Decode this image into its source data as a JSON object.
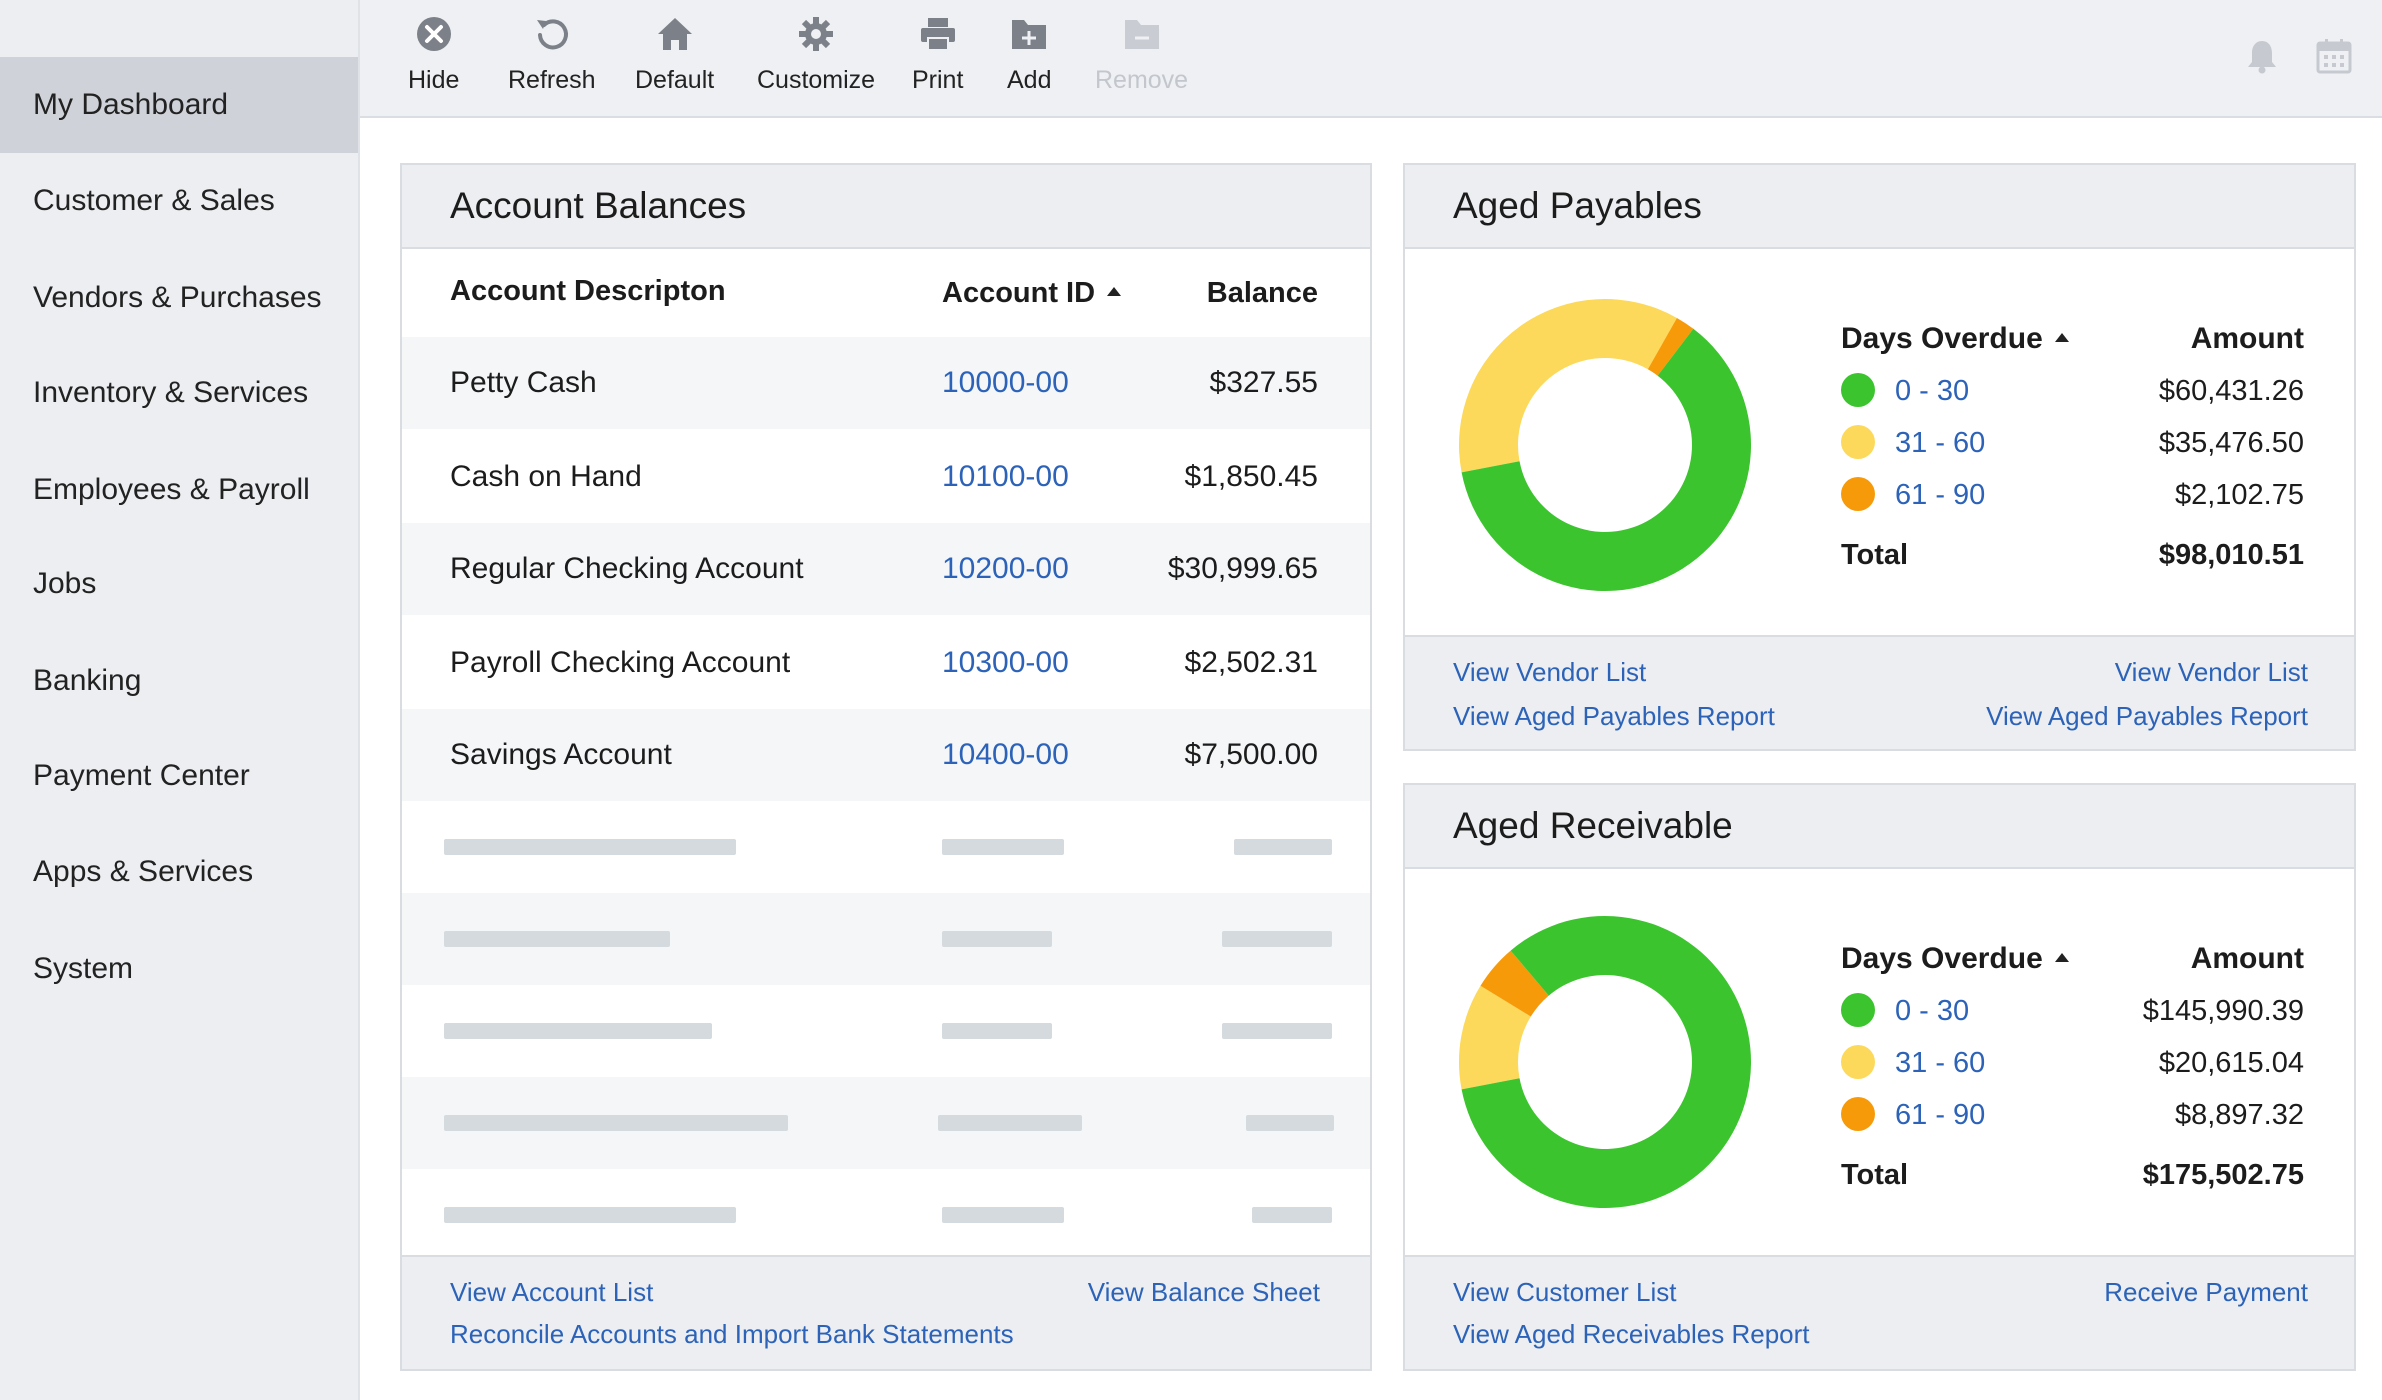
{
  "sidebar": {
    "items": [
      {
        "label": "My Dashboard",
        "active": true
      },
      {
        "label": "Customer & Sales"
      },
      {
        "label": "Vendors & Purchases"
      },
      {
        "label": "Inventory & Services"
      },
      {
        "label": "Employees & Payroll"
      },
      {
        "label": "Jobs"
      },
      {
        "label": "Banking"
      },
      {
        "label": "Payment Center"
      },
      {
        "label": "Apps & Services"
      },
      {
        "label": "System"
      }
    ]
  },
  "toolbar": {
    "buttons": [
      {
        "label": "Hide",
        "icon": "close-circle-icon"
      },
      {
        "label": "Refresh",
        "icon": "refresh-icon"
      },
      {
        "label": "Default",
        "icon": "home-icon"
      },
      {
        "label": "Customize",
        "icon": "gear-icon"
      },
      {
        "label": "Print",
        "icon": "printer-icon"
      },
      {
        "label": "Add",
        "icon": "folder-add-icon"
      },
      {
        "label": "Remove",
        "icon": "folder-remove-icon",
        "disabled": true
      }
    ],
    "right_icons": [
      "bell-icon",
      "calendar-icon"
    ]
  },
  "account_balances": {
    "title": "Account Balances",
    "columns": {
      "description": "Account Descripton",
      "id": "Account ID",
      "balance": "Balance"
    },
    "rows": [
      {
        "description": "Petty Cash",
        "id": "10000-00",
        "balance": "$327.55"
      },
      {
        "description": "Cash on Hand",
        "id": "10100-00",
        "balance": "$1,850.45"
      },
      {
        "description": "Regular Checking Account",
        "id": "10200-00",
        "balance": "$30,999.65"
      },
      {
        "description": "Payroll Checking Account",
        "id": "10300-00",
        "balance": "$2,502.31"
      },
      {
        "description": "Savings Account",
        "id": "10400-00",
        "balance": "$7,500.00"
      }
    ],
    "links": {
      "view_account_list": "View Account List",
      "reconcile": "Reconcile Accounts and Import Bank Statements",
      "view_balance_sheet": "View Balance Sheet"
    }
  },
  "aged_payables": {
    "title": "Aged Payables",
    "days_header": "Days Overdue",
    "amount_header": "Amount",
    "ranges": [
      {
        "label": "0 - 30",
        "amount": "$60,431.26",
        "value": 60431.26,
        "color": "#3cc42f"
      },
      {
        "label": "31 - 60",
        "amount": "$35,476.50",
        "value": 35476.5,
        "color": "#fcd95a"
      },
      {
        "label": "61 - 90",
        "amount": "$2,102.75",
        "value": 2102.75,
        "color": "#f79a09"
      }
    ],
    "total_label": "Total",
    "total": "$98,010.51",
    "links": {
      "view_vendor_list_left": "View Vendor List",
      "view_aged_payables_left": "View Aged Payables Report",
      "view_vendor_list_right": "View Vendor List",
      "view_aged_payables_right": "View Aged Payables Report"
    }
  },
  "aged_receivable": {
    "title": "Aged Receivable",
    "days_header": "Days Overdue",
    "amount_header": "Amount",
    "ranges": [
      {
        "label": "0 - 30",
        "amount": "$145,990.39",
        "value": 145990.39,
        "color": "#3cc42f"
      },
      {
        "label": "31 - 60",
        "amount": "$20,615.04",
        "value": 20615.04,
        "color": "#fcd95a"
      },
      {
        "label": "61 - 90",
        "amount": "$8,897.32",
        "value": 8897.32,
        "color": "#f79a09"
      }
    ],
    "total_label": "Total",
    "total": "$175,502.75",
    "links": {
      "view_customer_list": "View Customer List",
      "view_aged_receivables": "View Aged Receivables Report",
      "receive_payment": "Receive Payment"
    }
  }
}
